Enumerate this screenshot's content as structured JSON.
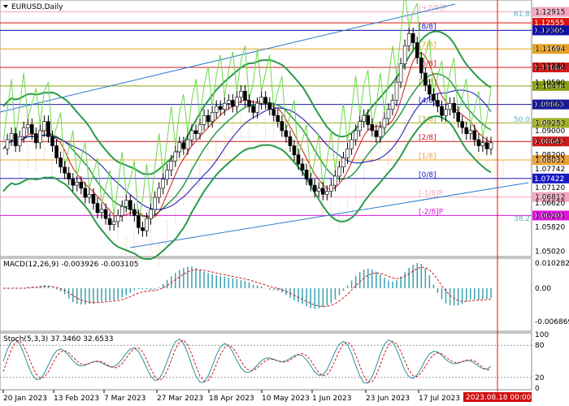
{
  "header": {
    "symbol_label": "EURUSD,Daily",
    "macd_label": "MACD(12,26,9) -0.003926 -0.003105",
    "stoch_label": "Stoch(5,3,3) 37.3460 32.6533"
  },
  "price_axis": {
    "ticks": [
      "1.12915",
      "1.12305",
      "1.11694",
      "1.11140",
      "1.11084",
      "1.10590",
      "1.10474",
      "1.09863",
      "1.09253",
      "1.09000",
      "1.08643",
      "1.08200",
      "1.08032",
      "1.07742",
      "1.07120",
      "1.06812",
      "1.06620",
      "1.06201",
      "1.05820",
      "1.05020"
    ]
  },
  "levels": [
    {
      "price": "1.12915",
      "label": "[+2/8]P",
      "color": "#f4a6c0"
    },
    {
      "price": "1.12555",
      "label": "",
      "color": "#e01010"
    },
    {
      "price": "1.12305",
      "label": "[8/8]",
      "color": "#1010b0"
    },
    {
      "price": "1.11694",
      "label": "[7/8]",
      "color": "#e8a020"
    },
    {
      "price": "1.11084",
      "label": "[6/8]",
      "color": "#d01818"
    },
    {
      "price": "1.10474",
      "label": "[5/8]",
      "color": "#8aa010"
    },
    {
      "price": "1.09863",
      "label": "[4/8]",
      "color": "#1818a0"
    },
    {
      "price": "1.09253",
      "label": "[3/8]",
      "color": "#a0b020"
    },
    {
      "price": "1.08643",
      "label": "[2/8]",
      "color": "#d01818"
    },
    {
      "price": "1.08032",
      "label": "[1/8]",
      "color": "#f0a030"
    },
    {
      "price": "1.07422",
      "label": "[0/8]",
      "color": "#1818c0"
    },
    {
      "price": "1.06812",
      "label": "[-1/8]P",
      "color": "#f4a6c0"
    },
    {
      "price": "1.06201",
      "label": "[-2/8]P",
      "color": "#e010e0"
    }
  ],
  "fib_labels": [
    "61.8",
    "50.0",
    "38.2"
  ],
  "macd_axis": {
    "ticks": [
      "0.010282",
      "0.00",
      "-0.006869"
    ]
  },
  "stoch_axis": {
    "ticks": [
      "100",
      "80",
      "20",
      "0"
    ]
  },
  "time_axis": {
    "labels": [
      "20 Jan 2023",
      "13 Feb 2023",
      "7 Mar 2023",
      "27 Mar 2023",
      "18 Apr 2023",
      "10 May 2023",
      "1 Jun 2023",
      "23 Jun 2023",
      "17 Jul 2023"
    ],
    "current": "2023.08.18 00:00"
  },
  "price_series": [
    1.084,
    1.087,
    1.089,
    1.085,
    1.088,
    1.091,
    1.092,
    1.089,
    1.086,
    1.09,
    1.093,
    1.088,
    1.085,
    1.081,
    1.078,
    1.076,
    1.074,
    1.072,
    1.073,
    1.071,
    1.068,
    1.069,
    1.066,
    1.063,
    1.064,
    1.061,
    1.059,
    1.06,
    1.062,
    1.065,
    1.067,
    1.064,
    1.062,
    1.058,
    1.057,
    1.061,
    1.064,
    1.068,
    1.071,
    1.074,
    1.077,
    1.08,
    1.083,
    1.086,
    1.084,
    1.087,
    1.09,
    1.089,
    1.092,
    1.095,
    1.093,
    1.096,
    1.098,
    1.097,
    1.099,
    1.1,
    1.098,
    1.101,
    1.103,
    1.1,
    1.098,
    1.096,
    1.099,
    1.101,
    1.099,
    1.097,
    1.095,
    1.093,
    1.09,
    1.088,
    1.085,
    1.082,
    1.079,
    1.077,
    1.074,
    1.072,
    1.07,
    1.071,
    1.069,
    1.07,
    1.072,
    1.075,
    1.078,
    1.081,
    1.084,
    1.087,
    1.09,
    1.093,
    1.095,
    1.092,
    1.09,
    1.088,
    1.091,
    1.094,
    1.097,
    1.1,
    1.106,
    1.112,
    1.118,
    1.122,
    1.119,
    1.114,
    1.109,
    1.105,
    1.102,
    1.1,
    1.098,
    1.095,
    1.097,
    1.099,
    1.096,
    1.093,
    1.091,
    1.089,
    1.09,
    1.087,
    1.085,
    1.086,
    1.084,
    1.086
  ]
}
